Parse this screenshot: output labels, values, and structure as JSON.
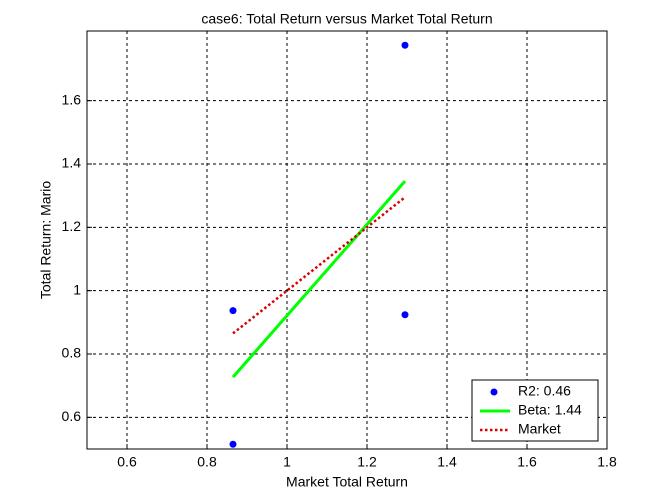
{
  "chart_data": {
    "type": "scatter",
    "title": "case6: Total Return versus Market Total Return",
    "x_label": "Market Total Return",
    "y_label": "Total Return: Mario",
    "xlim": [
      0.5,
      1.8
    ],
    "ylim": [
      0.5,
      1.82
    ],
    "xticks": [
      0.6,
      0.8,
      1,
      1.2,
      1.4,
      1.6,
      1.8
    ],
    "yticks": [
      0.6,
      0.8,
      1,
      1.2,
      1.4,
      1.6
    ],
    "grid": true,
    "legend": "lower right",
    "series": [
      {
        "name": "R2: 0.46",
        "color": "#0000ff",
        "mode": "markers",
        "x": [
          0.865,
          0.865,
          1.295,
          1.295
        ],
        "values": [
          0.937,
          0.515,
          1.775,
          0.924
        ]
      },
      {
        "name": "Beta: 1.44",
        "color": "#00ff00",
        "mode": "line",
        "dashed": false,
        "x": [
          0.865,
          1.295
        ],
        "values": [
          0.727,
          1.346
        ]
      },
      {
        "name": "Market",
        "color": "#dd0000",
        "mode": "line",
        "dashed": true,
        "x": [
          0.865,
          1.295
        ],
        "values": [
          0.865,
          1.295
        ]
      }
    ]
  }
}
